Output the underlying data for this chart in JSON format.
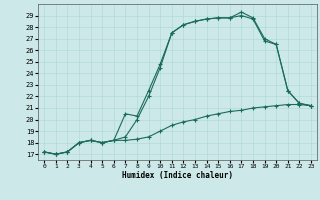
{
  "xlabel": "Humidex (Indice chaleur)",
  "bg_color": "#cce8e8",
  "line_color": "#1a6b5a",
  "xlim": [
    -0.5,
    23.5
  ],
  "ylim": [
    16.5,
    30.0
  ],
  "xticks": [
    0,
    1,
    2,
    3,
    4,
    5,
    6,
    7,
    8,
    9,
    10,
    11,
    12,
    13,
    14,
    15,
    16,
    17,
    18,
    19,
    20,
    21,
    22,
    23
  ],
  "yticks": [
    17,
    18,
    19,
    20,
    21,
    22,
    23,
    24,
    25,
    26,
    27,
    28,
    29
  ],
  "line1_x": [
    0,
    1,
    2,
    3,
    4,
    5,
    6,
    7,
    8,
    9,
    10,
    11,
    12,
    13,
    14,
    15,
    16,
    17,
    18,
    19,
    20,
    21,
    22,
    23
  ],
  "line1_y": [
    17.2,
    17.0,
    17.2,
    18.0,
    18.2,
    18.0,
    18.2,
    18.2,
    18.3,
    18.5,
    19.0,
    19.5,
    19.8,
    20.0,
    20.3,
    20.5,
    20.7,
    20.8,
    21.0,
    21.1,
    21.2,
    21.3,
    21.3,
    21.2
  ],
  "line2_x": [
    0,
    1,
    2,
    3,
    4,
    5,
    6,
    7,
    8,
    9,
    10,
    11,
    12,
    13,
    14,
    15,
    16,
    17,
    18,
    19,
    20,
    21,
    22,
    23
  ],
  "line2_y": [
    17.2,
    17.0,
    17.2,
    18.0,
    18.2,
    18.0,
    18.2,
    18.5,
    20.0,
    22.0,
    24.5,
    27.5,
    28.2,
    28.5,
    28.7,
    28.8,
    28.8,
    29.0,
    28.7,
    26.8,
    26.5,
    22.5,
    21.4,
    21.2
  ],
  "line3_x": [
    0,
    1,
    2,
    3,
    4,
    5,
    6,
    7,
    8,
    9,
    10,
    11,
    12,
    13,
    14,
    15,
    16,
    17,
    18,
    19,
    20,
    21,
    22,
    23
  ],
  "line3_y": [
    17.2,
    17.0,
    17.2,
    18.0,
    18.2,
    18.0,
    18.2,
    20.5,
    20.3,
    22.5,
    24.8,
    27.5,
    28.2,
    28.5,
    28.7,
    28.8,
    28.8,
    29.3,
    28.8,
    27.0,
    26.5,
    22.5,
    21.4,
    21.2
  ],
  "marker": "+",
  "markersize": 2.5,
  "linewidth": 0.8
}
